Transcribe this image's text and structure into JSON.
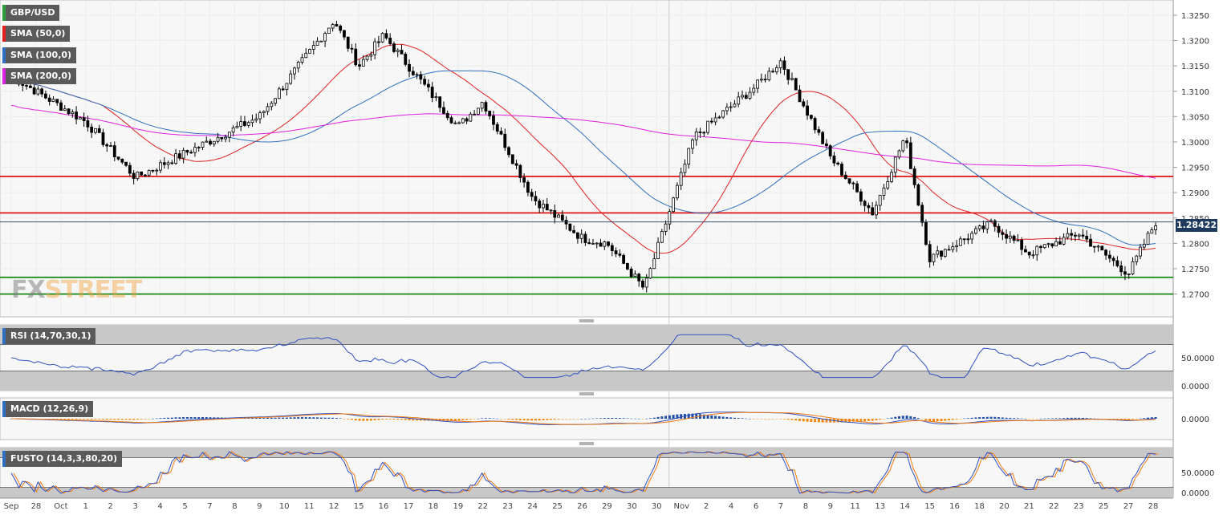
{
  "chart_data": [
    {
      "type": "candlestick",
      "title": "GBP/USD",
      "overlays": [
        {
          "name": "SMA (50,0)",
          "color": "#e02020"
        },
        {
          "name": "SMA (100,0)",
          "color": "#2f6fbf"
        },
        {
          "name": "SMA (200,0)",
          "color": "#e020e0"
        }
      ],
      "ylim": [
        1.2655,
        1.328
      ],
      "y_ticks": [
        "1.3250",
        "1.3200",
        "1.3150",
        "1.3100",
        "1.3050",
        "1.3000",
        "1.2950",
        "1.2900",
        "1.2850",
        "1.2800",
        "1.2750",
        "1.2700"
      ],
      "current_price": "1.28422",
      "horizontal_levels": [
        {
          "value": 1.2932,
          "color": "#e00000"
        },
        {
          "value": 1.286,
          "color": "#e00000"
        },
        {
          "value": 1.2733,
          "color": "#008000"
        },
        {
          "value": 1.27,
          "color": "#008000"
        }
      ],
      "x_ticks": [
        "Sep",
        "28",
        "Oct",
        "1",
        "2",
        "3",
        "4",
        "5",
        "7",
        "8",
        "9",
        "10",
        "11",
        "12",
        "15",
        "16",
        "17",
        "18",
        "19",
        "22",
        "23",
        "24",
        "25",
        "26",
        "29",
        "30",
        "30",
        "Nov",
        "2",
        "4",
        "6",
        "7",
        "8",
        "9",
        "11",
        "13",
        "14",
        "15",
        "16",
        "18",
        "20",
        "21",
        "22",
        "23",
        "25",
        "27",
        "28"
      ],
      "key_closes": [
        {
          "date": "Sep 27",
          "close": 1.313
        },
        {
          "date": "Oct 1",
          "close": 1.304
        },
        {
          "date": "Oct 3",
          "close": 1.293
        },
        {
          "date": "Oct 9",
          "close": 1.305
        },
        {
          "date": "Oct 12",
          "close": 1.324
        },
        {
          "date": "Oct 15",
          "close": 1.315
        },
        {
          "date": "Oct 16",
          "close": 1.321
        },
        {
          "date": "Oct 19",
          "close": 1.303
        },
        {
          "date": "Oct 22",
          "close": 1.308
        },
        {
          "date": "Oct 24",
          "close": 1.289
        },
        {
          "date": "Oct 26",
          "close": 1.281
        },
        {
          "date": "Oct 29",
          "close": 1.28
        },
        {
          "date": "Oct 30",
          "close": 1.271
        },
        {
          "date": "Nov 1",
          "close": 1.301
        },
        {
          "date": "Nov 6",
          "close": 1.311
        },
        {
          "date": "Nov 7",
          "close": 1.316
        },
        {
          "date": "Nov 9",
          "close": 1.297
        },
        {
          "date": "Nov 12",
          "close": 1.286
        },
        {
          "date": "Nov 14",
          "close": 1.301
        },
        {
          "date": "Nov 15",
          "close": 1.277
        },
        {
          "date": "Nov 19",
          "close": 1.284
        },
        {
          "date": "Nov 21",
          "close": 1.278
        },
        {
          "date": "Nov 23",
          "close": 1.282
        },
        {
          "date": "Nov 27",
          "close": 1.274
        },
        {
          "date": "Nov 28",
          "close": 1.2842
        }
      ]
    },
    {
      "type": "line",
      "title": "RSI (14,70,30,1)",
      "y_ticks": [
        "50.0000",
        "0.0000"
      ],
      "bands": [
        70,
        30
      ]
    },
    {
      "type": "bar",
      "title": "MACD (12,26,9)",
      "y_ticks": [
        "0.0000"
      ]
    },
    {
      "type": "line",
      "title": "FUSTO (14,3,3,80,20)",
      "y_ticks": [
        "50.0000",
        "0.0000"
      ],
      "bands": [
        80,
        20
      ]
    }
  ],
  "watermark": {
    "fx": "FX",
    "street": "STREET"
  }
}
